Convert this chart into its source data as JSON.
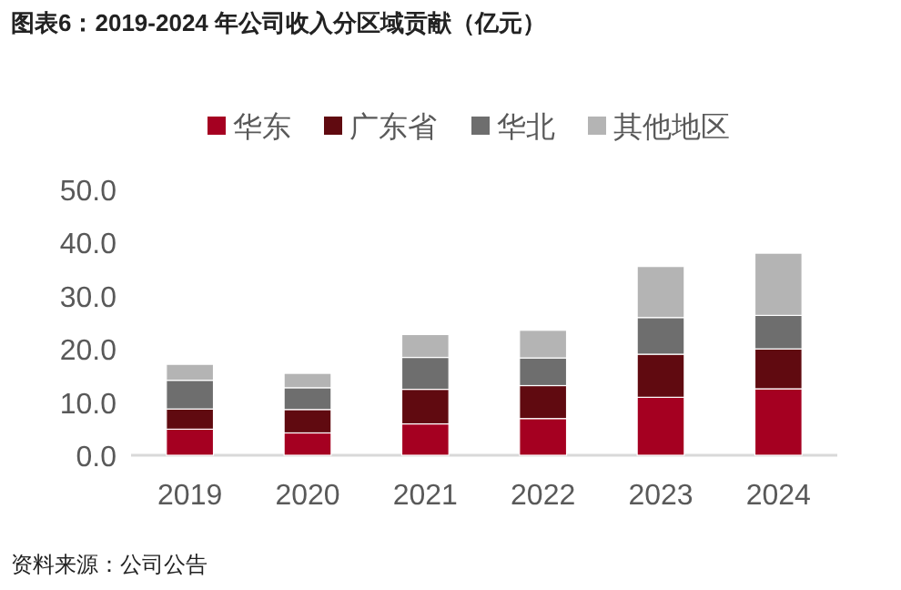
{
  "chart_data": {
    "type": "bar",
    "title": "图表6：2019-2024 年公司收入分区域贡献（亿元）",
    "categories": [
      "2019",
      "2020",
      "2021",
      "2022",
      "2023",
      "2024"
    ],
    "series": [
      {
        "name": "华东",
        "color": "#a50021",
        "values": [
          4.9,
          4.2,
          5.9,
          6.9,
          10.9,
          12.5
        ]
      },
      {
        "name": "广东省",
        "color": "#600a10",
        "values": [
          3.8,
          4.4,
          6.5,
          6.2,
          8.1,
          7.5
        ]
      },
      {
        "name": "华北",
        "color": "#6e6e6e",
        "values": [
          5.4,
          4.1,
          6.0,
          5.2,
          6.9,
          6.3
        ]
      },
      {
        "name": "其他地区",
        "color": "#b4b4b4",
        "values": [
          3.0,
          2.7,
          4.3,
          5.2,
          9.6,
          11.7
        ]
      }
    ],
    "stacked": true,
    "ylim": [
      0,
      50
    ],
    "yticks": [
      {
        "value": 0,
        "label": "0.0"
      },
      {
        "value": 10,
        "label": "10.0"
      },
      {
        "value": 20,
        "label": "20.0"
      },
      {
        "value": 30,
        "label": "30.0"
      },
      {
        "value": 40,
        "label": "40.0"
      },
      {
        "value": 50,
        "label": "50.0"
      }
    ],
    "legend": "top",
    "annotations": [
      "资料来源：公司公告"
    ]
  }
}
